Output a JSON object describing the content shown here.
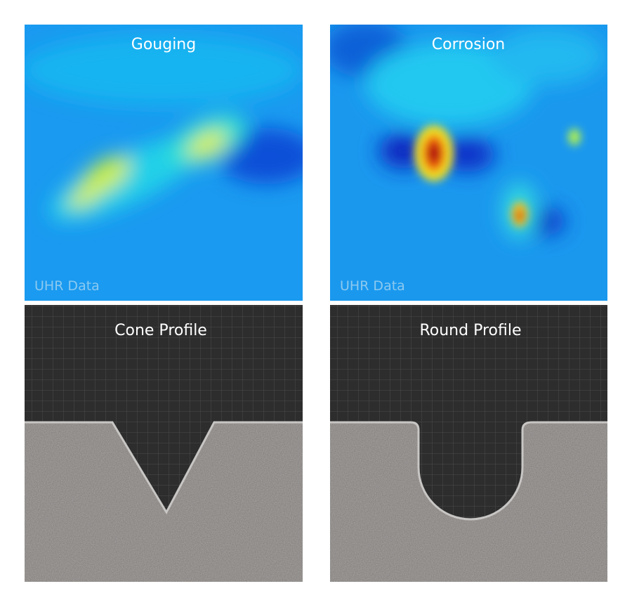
{
  "panels": [
    {
      "title": "Gouging",
      "watermark": "UHR Data"
    },
    {
      "title": "Corrosion",
      "watermark": "UHR Data"
    },
    {
      "title": "Cone Profile"
    },
    {
      "title": "Round Profile"
    }
  ]
}
